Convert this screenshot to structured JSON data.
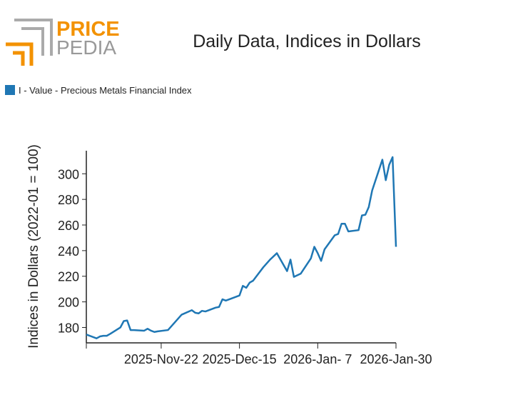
{
  "logo": {
    "word1": "PRICE",
    "word2": "PEDIA"
  },
  "chart_data": {
    "type": "line",
    "title": "Daily Data, Indices in Dollars",
    "y_label": "Indices in Dollars (2022-01 = 100)",
    "x": [
      "2025-10-31",
      "2025-11-03",
      "2025-11-04",
      "2025-11-05",
      "2025-11-06",
      "2025-11-07",
      "2025-11-10",
      "2025-11-11",
      "2025-11-12",
      "2025-11-13",
      "2025-11-14",
      "2025-11-17",
      "2025-11-18",
      "2025-11-19",
      "2025-11-20",
      "2025-11-21",
      "2025-11-24",
      "2025-11-25",
      "2025-11-26",
      "2025-11-28",
      "2025-12-01",
      "2025-12-02",
      "2025-12-03",
      "2025-12-04",
      "2025-12-05",
      "2025-12-08",
      "2025-12-09",
      "2025-12-10",
      "2025-12-11",
      "2025-12-12",
      "2025-12-15",
      "2025-12-16",
      "2025-12-17",
      "2025-12-18",
      "2025-12-19",
      "2025-12-22",
      "2025-12-23",
      "2025-12-24",
      "2025-12-26",
      "2025-12-29",
      "2025-12-30",
      "2025-12-31",
      "2026-01-02",
      "2026-01-05",
      "2026-01-06",
      "2026-01-07",
      "2026-01-08",
      "2026-01-09",
      "2026-01-12",
      "2026-01-13",
      "2026-01-14",
      "2026-01-15",
      "2026-01-16",
      "2026-01-19",
      "2026-01-20",
      "2026-01-21",
      "2026-01-22",
      "2026-01-23",
      "2026-01-26",
      "2026-01-27",
      "2026-01-28",
      "2026-01-29",
      "2026-01-30"
    ],
    "series": [
      {
        "name": "I - Value - Precious Metals Financial Index",
        "color": "#1f77b4",
        "values": [
          174.5,
          171.5,
          173,
          173.5,
          173.5,
          175,
          180,
          185,
          185.5,
          178,
          178,
          177.5,
          179,
          177.5,
          176.5,
          177,
          178,
          181,
          184,
          190,
          193.5,
          191.5,
          191,
          193,
          192.5,
          195.5,
          196,
          202,
          201,
          202,
          205,
          212.5,
          211,
          215,
          216.5,
          227,
          230,
          233,
          238,
          224,
          233,
          219.5,
          222,
          234,
          243,
          238,
          232,
          241,
          252,
          253,
          261,
          261,
          255,
          256,
          267.5,
          268,
          274,
          287,
          311,
          295,
          307,
          313,
          243
        ]
      }
    ],
    "xlim": [
      "2025-10-31",
      "2026-01-30"
    ],
    "xticks": [
      {
        "value": "2025-11-22",
        "label": "2025-Nov-22"
      },
      {
        "value": "2025-12-15",
        "label": "2025-Dec-15"
      },
      {
        "value": "2026-01-07",
        "label": "2026-Jan- 7"
      },
      {
        "value": "2026-01-30",
        "label": "2026-Jan-30"
      }
    ],
    "ylim": [
      168,
      318
    ],
    "yticks": [
      180,
      200,
      220,
      240,
      260,
      280,
      300
    ]
  }
}
